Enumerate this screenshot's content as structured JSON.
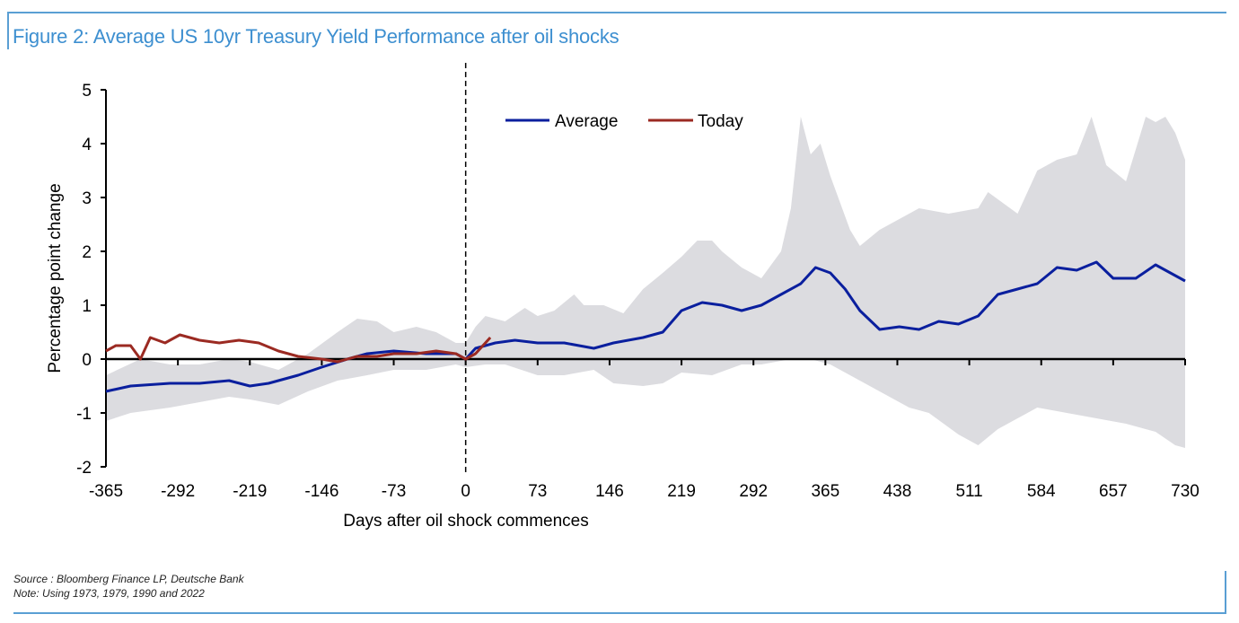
{
  "title": "Figure 2: Average US 10yr Treasury Yield Performance after oil shocks",
  "footer": {
    "source": "Source : Bloomberg Finance LP, Deutsche Bank",
    "note": "Note: Using 1973, 1979, 1990 and 2022"
  },
  "chart_data": {
    "type": "line",
    "title": "Figure 2: Average US 10yr Treasury Yield Performance after oil shocks",
    "xlabel": "Days after oil shock commences",
    "ylabel": "Percentage point change",
    "xlim": [
      -365,
      730
    ],
    "ylim": [
      -2,
      5
    ],
    "xticks": [
      -365,
      -292,
      -219,
      -146,
      -73,
      0,
      73,
      146,
      219,
      292,
      365,
      438,
      511,
      584,
      657,
      730
    ],
    "yticks": [
      -2,
      -1,
      0,
      1,
      2,
      3,
      4,
      5
    ],
    "vline_at": 0,
    "legend": {
      "placement": "top-center",
      "entries": [
        "Average",
        "Today"
      ]
    },
    "colors": {
      "Average": "#0a1f9e",
      "Today": "#9b2a22",
      "range": "#dcdce0"
    },
    "series": [
      {
        "name": "Average",
        "x": [
          -365,
          -340,
          -300,
          -270,
          -240,
          -219,
          -200,
          -170,
          -146,
          -120,
          -100,
          -73,
          -40,
          -10,
          0,
          10,
          30,
          50,
          73,
          100,
          130,
          150,
          180,
          200,
          219,
          240,
          260,
          280,
          300,
          320,
          340,
          355,
          370,
          385,
          400,
          420,
          440,
          460,
          480,
          500,
          520,
          540,
          560,
          580,
          600,
          620,
          640,
          657,
          680,
          700,
          715,
          730
        ],
        "y": [
          -0.6,
          -0.5,
          -0.45,
          -0.45,
          -0.4,
          -0.5,
          -0.45,
          -0.3,
          -0.15,
          0,
          0.1,
          0.15,
          0.1,
          0.1,
          0,
          0.2,
          0.3,
          0.35,
          0.3,
          0.3,
          0.2,
          0.3,
          0.4,
          0.5,
          0.9,
          1.05,
          1.0,
          0.9,
          1.0,
          1.2,
          1.4,
          1.7,
          1.6,
          1.3,
          0.9,
          0.55,
          0.6,
          0.55,
          0.7,
          0.65,
          0.8,
          1.2,
          1.3,
          1.4,
          1.7,
          1.65,
          1.8,
          1.5,
          1.5,
          1.75,
          1.6,
          1.45
        ]
      },
      {
        "name": "Today",
        "x": [
          -365,
          -355,
          -340,
          -330,
          -320,
          -305,
          -290,
          -270,
          -250,
          -230,
          -210,
          -190,
          -170,
          -146,
          -130,
          -110,
          -90,
          -73,
          -50,
          -30,
          -10,
          0,
          10,
          20,
          25
        ],
        "y": [
          0.15,
          0.25,
          0.25,
          0.0,
          0.4,
          0.3,
          0.45,
          0.35,
          0.3,
          0.35,
          0.3,
          0.15,
          0.05,
          0.0,
          -0.05,
          0.05,
          0.05,
          0.1,
          0.1,
          0.15,
          0.1,
          0.0,
          0.1,
          0.3,
          0.4
        ]
      }
    ],
    "range_band": {
      "upper_x": [
        -365,
        -330,
        -300,
        -270,
        -240,
        -219,
        -190,
        -160,
        -130,
        -110,
        -90,
        -73,
        -50,
        -30,
        -10,
        0,
        10,
        20,
        40,
        60,
        73,
        90,
        110,
        120,
        140,
        160,
        180,
        200,
        219,
        235,
        250,
        260,
        280,
        300,
        320,
        330,
        340,
        350,
        360,
        370,
        390,
        400,
        420,
        440,
        460,
        490,
        520,
        530,
        560,
        580,
        600,
        620,
        635,
        650,
        670,
        690,
        700,
        710,
        720,
        730
      ],
      "upper_y": [
        -0.3,
        0.0,
        -0.1,
        -0.1,
        0.0,
        -0.05,
        -0.2,
        0.1,
        0.5,
        0.75,
        0.7,
        0.5,
        0.6,
        0.5,
        0.3,
        0.3,
        0.6,
        0.8,
        0.7,
        0.95,
        0.8,
        0.9,
        1.2,
        1.0,
        1.0,
        0.85,
        1.3,
        1.6,
        1.9,
        2.2,
        2.2,
        2.0,
        1.7,
        1.5,
        2.0,
        2.8,
        4.5,
        3.8,
        4.0,
        3.4,
        2.4,
        2.1,
        2.4,
        2.6,
        2.8,
        2.7,
        2.8,
        3.1,
        2.7,
        3.5,
        3.7,
        3.8,
        4.5,
        3.6,
        3.3,
        4.5,
        4.4,
        4.5,
        4.2,
        3.7
      ],
      "lower_x": [
        -365,
        -340,
        -300,
        -270,
        -240,
        -219,
        -190,
        -160,
        -130,
        -100,
        -73,
        -40,
        -10,
        0,
        20,
        40,
        73,
        100,
        130,
        150,
        180,
        200,
        219,
        250,
        280,
        300,
        330,
        350,
        370,
        400,
        430,
        450,
        470,
        500,
        520,
        540,
        560,
        580,
        610,
        640,
        670,
        700,
        720,
        730
      ],
      "lower_y": [
        -1.15,
        -1.0,
        -0.9,
        -0.8,
        -0.7,
        -0.75,
        -0.85,
        -0.6,
        -0.4,
        -0.3,
        -0.2,
        -0.2,
        -0.1,
        -0.15,
        -0.1,
        -0.1,
        -0.3,
        -0.3,
        -0.2,
        -0.45,
        -0.5,
        -0.45,
        -0.25,
        -0.3,
        -0.1,
        -0.1,
        0,
        0,
        -0.1,
        -0.4,
        -0.7,
        -0.9,
        -1.0,
        -1.4,
        -1.6,
        -1.3,
        -1.1,
        -0.9,
        -1.0,
        -1.1,
        -1.2,
        -1.35,
        -1.6,
        -1.65
      ]
    }
  }
}
